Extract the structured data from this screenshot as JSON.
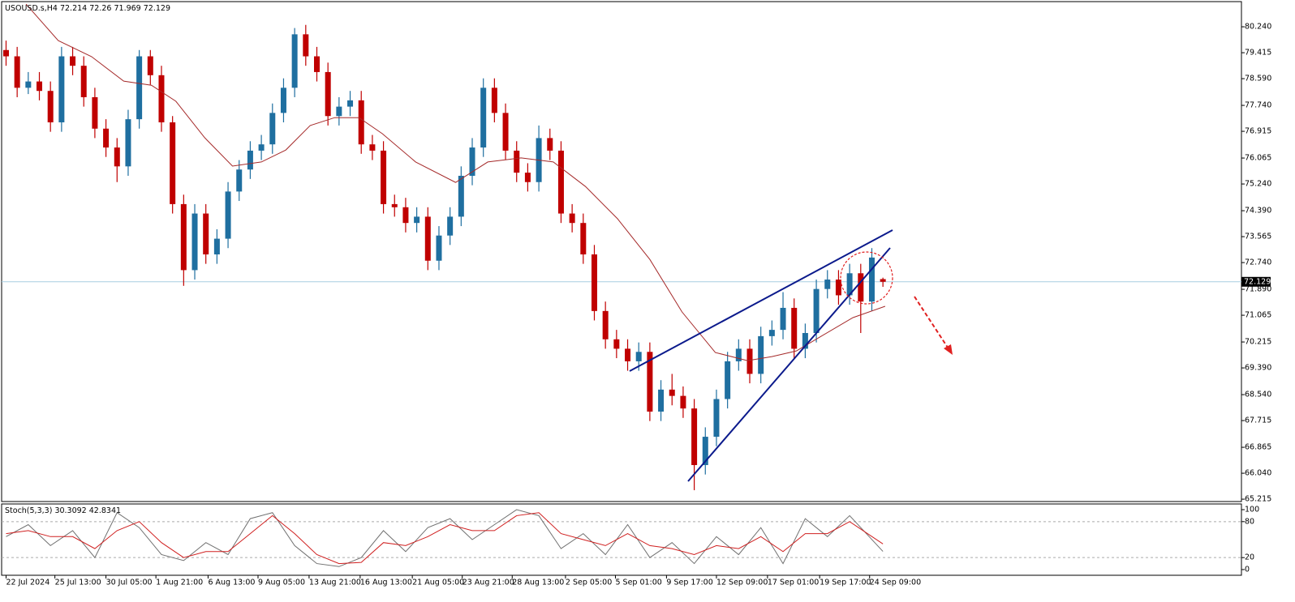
{
  "chart_data": {
    "type": "candlestick",
    "symbol": "USOUSD.s,H4",
    "series": {
      "open": [
        79.5,
        79.3,
        78.3,
        78.5,
        78.2,
        77.2,
        79.3,
        79.0,
        78.0,
        77.0,
        76.4,
        75.8,
        77.3,
        79.3,
        78.7,
        77.2,
        74.6,
        72.5,
        74.3,
        73.0,
        73.5,
        75.0,
        75.7,
        76.3,
        76.5,
        77.5,
        78.3,
        80.0,
        79.3,
        78.8,
        77.4,
        77.7,
        77.9,
        76.5,
        76.3,
        74.6,
        74.5,
        74.0,
        74.2,
        72.8,
        73.6,
        74.2,
        75.5,
        76.4,
        78.3,
        77.5,
        76.3,
        75.6,
        75.3,
        76.7,
        76.3,
        74.3,
        74.0,
        73.0,
        71.2,
        70.3,
        70.0,
        69.6,
        69.9,
        68.0,
        68.7,
        68.5,
        68.1,
        66.3,
        67.2,
        68.4,
        69.6,
        70.0,
        69.2,
        70.4,
        70.6,
        71.3,
        70.0,
        70.5,
        71.9,
        72.2,
        71.7,
        72.4,
        71.5,
        72.214
      ],
      "high": [
        79.8,
        79.6,
        78.8,
        78.8,
        78.5,
        79.6,
        79.6,
        79.3,
        78.3,
        77.3,
        76.7,
        77.6,
        79.5,
        79.5,
        79.0,
        77.4,
        74.9,
        74.6,
        74.6,
        73.8,
        75.3,
        76.0,
        76.6,
        76.8,
        77.8,
        78.6,
        80.2,
        80.3,
        79.6,
        79.1,
        78.0,
        78.2,
        78.2,
        76.8,
        76.6,
        74.9,
        74.8,
        74.5,
        74.5,
        73.9,
        74.5,
        75.8,
        76.7,
        78.6,
        78.6,
        77.8,
        76.6,
        75.9,
        77.1,
        77.0,
        76.6,
        74.6,
        74.3,
        73.3,
        71.5,
        70.6,
        70.3,
        70.2,
        70.2,
        69.0,
        69.2,
        68.8,
        68.4,
        67.5,
        68.7,
        69.9,
        70.3,
        70.3,
        70.7,
        70.9,
        71.8,
        71.6,
        70.8,
        72.2,
        72.5,
        72.5,
        72.7,
        72.7,
        73.2,
        72.26
      ],
      "low": [
        79.0,
        78.0,
        78.1,
        77.9,
        76.9,
        76.9,
        78.7,
        77.7,
        76.7,
        76.1,
        75.3,
        75.5,
        77.0,
        78.4,
        76.9,
        74.3,
        72.0,
        72.2,
        72.7,
        72.7,
        73.2,
        74.7,
        75.4,
        76.0,
        76.2,
        77.2,
        78.0,
        79.0,
        78.5,
        77.1,
        77.1,
        77.4,
        76.2,
        76.0,
        74.3,
        74.2,
        73.7,
        73.7,
        72.5,
        72.5,
        73.3,
        73.9,
        75.2,
        76.1,
        77.2,
        76.0,
        75.3,
        75.0,
        75.0,
        76.0,
        74.0,
        73.7,
        72.7,
        70.9,
        70.0,
        69.7,
        69.3,
        69.3,
        67.7,
        67.7,
        68.2,
        67.8,
        65.5,
        66.0,
        66.9,
        68.1,
        69.3,
        68.9,
        68.9,
        70.1,
        70.3,
        69.7,
        69.7,
        70.2,
        71.6,
        71.4,
        71.4,
        70.5,
        71.2,
        71.969
      ],
      "close": [
        79.3,
        78.3,
        78.5,
        78.2,
        77.2,
        79.3,
        79.0,
        78.0,
        77.0,
        76.4,
        75.8,
        77.3,
        79.3,
        78.7,
        77.2,
        74.6,
        72.5,
        74.3,
        73.0,
        73.5,
        75.0,
        75.7,
        76.3,
        76.5,
        77.5,
        78.3,
        80.0,
        79.3,
        78.8,
        77.4,
        77.7,
        77.9,
        76.5,
        76.3,
        74.6,
        74.5,
        74.0,
        74.2,
        72.8,
        73.6,
        74.2,
        75.5,
        76.4,
        78.3,
        77.5,
        76.3,
        75.6,
        75.3,
        76.7,
        76.3,
        74.3,
        74.0,
        73.0,
        71.2,
        70.3,
        70.0,
        69.6,
        69.9,
        68.0,
        68.7,
        68.5,
        68.1,
        66.3,
        67.2,
        68.4,
        69.6,
        70.0,
        69.2,
        70.4,
        70.6,
        71.3,
        70.0,
        70.5,
        71.9,
        72.2,
        71.7,
        72.4,
        71.5,
        72.9,
        72.129
      ]
    },
    "up_color": "#1f6fa0",
    "down_color": "#c00000",
    "xlim": [
      -0.4,
      111.3
    ],
    "ylim": [
      65.14,
      81.04
    ],
    "yticks": [
      {
        "value": 80.24,
        "label": "80.240"
      },
      {
        "value": 79.415,
        "label": "79.415"
      },
      {
        "value": 78.59,
        "label": "78.590"
      },
      {
        "value": 77.74,
        "label": "77.740"
      },
      {
        "value": 76.915,
        "label": "76.915"
      },
      {
        "value": 76.065,
        "label": "76.065"
      },
      {
        "value": 75.24,
        "label": "75.240"
      },
      {
        "value": 74.39,
        "label": "74.390"
      },
      {
        "value": 73.565,
        "label": "73.565"
      },
      {
        "value": 72.74,
        "label": "72.740"
      },
      {
        "value": 71.89,
        "label": "71.890"
      },
      {
        "value": 71.065,
        "label": "71.065"
      },
      {
        "value": 70.215,
        "label": "70.215"
      },
      {
        "value": 69.39,
        "label": "69.390"
      },
      {
        "value": 68.54,
        "label": "68.540"
      },
      {
        "value": 67.715,
        "label": "67.715"
      },
      {
        "value": 66.865,
        "label": "66.865"
      },
      {
        "value": 66.04,
        "label": "66.040"
      },
      {
        "value": 65.215,
        "label": "65.215"
      }
    ],
    "xticks": [
      {
        "value": 0,
        "label": "22 Jul 2024"
      },
      {
        "value": 4.4,
        "label": "25 Jul 13:00"
      },
      {
        "value": 9,
        "label": "30 Jul 05:00"
      },
      {
        "value": 13.5,
        "label": "1 Aug 21:00"
      },
      {
        "value": 18.2,
        "label": "6 Aug 13:00"
      },
      {
        "value": 22.7,
        "label": "9 Aug 05:00"
      },
      {
        "value": 27.3,
        "label": "13 Aug 21:00"
      },
      {
        "value": 31.9,
        "label": "16 Aug 13:00"
      },
      {
        "value": 36.6,
        "label": "21 Aug 05:00"
      },
      {
        "value": 41.1,
        "label": "23 Aug 21:00"
      },
      {
        "value": 45.6,
        "label": "28 Aug 13:00"
      },
      {
        "value": 50.4,
        "label": "2 Sep 05:00"
      },
      {
        "value": 54.9,
        "label": "5 Sep 01:00"
      },
      {
        "value": 59.5,
        "label": "9 Sep 17:00"
      },
      {
        "value": 64,
        "label": "12 Sep 09:00"
      },
      {
        "value": 68.6,
        "label": "17 Sep 01:00"
      },
      {
        "value": 73.3,
        "label": "19 Sep 17:00"
      },
      {
        "value": 77.8,
        "label": "24 Sep 09:00"
      }
    ],
    "ma": {
      "color": "#a52a2a",
      "x": [
        1.8,
        4.7,
        7.7,
        10.6,
        13.1,
        15.3,
        17.9,
        20.4,
        23,
        25.2,
        27.4,
        29.6,
        31.8,
        33.9,
        36.9,
        40.5,
        43.4,
        46.4,
        49.3,
        52.2,
        55.1,
        58,
        60.9,
        63.9,
        66.8,
        69,
        71.2,
        73.4,
        76.3,
        79.2
      ],
      "values": [
        80.96,
        79.8,
        79.29,
        78.51,
        78.38,
        77.87,
        76.71,
        75.81,
        75.94,
        76.32,
        77.1,
        77.35,
        77.35,
        76.84,
        75.94,
        75.29,
        75.94,
        76.07,
        75.94,
        75.16,
        74.13,
        72.84,
        71.17,
        69.88,
        69.62,
        69.75,
        69.93,
        70.39,
        70.99,
        71.35
      ]
    },
    "stoch": {
      "name": "Stoch(5,3,3)",
      "main_color": "#707070",
      "signal_color": "#d02020",
      "x": [
        0,
        2,
        4,
        6,
        8,
        10,
        12,
        14,
        16,
        18,
        20,
        22,
        24,
        26,
        28,
        30,
        32,
        34,
        36,
        38,
        40,
        42,
        44,
        46,
        48,
        50,
        52,
        54,
        56,
        58,
        60,
        62,
        64,
        66,
        68,
        70,
        72,
        74,
        76,
        79
      ],
      "main": [
        55,
        75,
        40,
        65,
        20,
        95,
        70,
        25,
        15,
        45,
        25,
        85,
        95,
        40,
        10,
        5,
        20,
        65,
        30,
        70,
        85,
        50,
        75,
        100,
        90,
        35,
        60,
        25,
        75,
        20,
        45,
        10,
        55,
        25,
        70,
        10,
        85,
        55,
        90,
        30.3092
      ],
      "signal": [
        60,
        65,
        55,
        55,
        35,
        65,
        80,
        45,
        20,
        30,
        30,
        60,
        90,
        60,
        25,
        10,
        12,
        45,
        40,
        55,
        75,
        65,
        65,
        90,
        95,
        60,
        50,
        40,
        60,
        40,
        35,
        25,
        40,
        35,
        55,
        30,
        60,
        60,
        80,
        42.8341
      ],
      "ylim": [
        -9.5,
        109.5
      ],
      "yticks": [
        100,
        80,
        20,
        0
      ],
      "levels": [
        20,
        80
      ]
    }
  }
}
